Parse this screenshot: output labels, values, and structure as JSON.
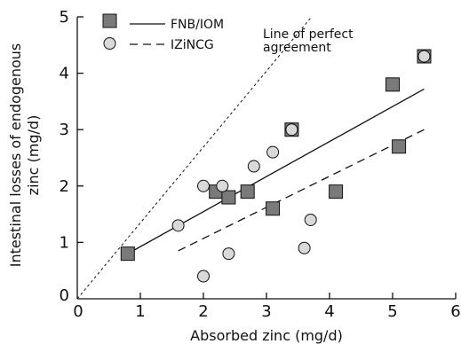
{
  "chart_data": {
    "type": "scatter",
    "xlabel": "Absorbed zinc (mg/d)",
    "ylabel_lines": [
      "Intestinal losses of endogenous",
      "zinc (mg/d)"
    ],
    "xlim": [
      0,
      6
    ],
    "ylim": [
      0,
      5
    ],
    "xticks": [
      0,
      1,
      2,
      3,
      4,
      5,
      6
    ],
    "yticks": [
      0,
      1,
      2,
      3,
      4,
      5
    ],
    "grid": false,
    "legend_position": "top-left",
    "legend": [
      {
        "label": "FNB/IOM",
        "marker": "square",
        "line": "solid"
      },
      {
        "label": "IZiNCG",
        "marker": "circle",
        "line": "dashed"
      }
    ],
    "annotation_lines": [
      "Line of perfect",
      "agreement"
    ],
    "reference_line": {
      "from": [
        0,
        0
      ],
      "to": [
        3.7,
        4.98
      ]
    },
    "series": [
      {
        "label_ref": "FNB/IOM",
        "points": [
          [
            0.8,
            0.8
          ],
          [
            2.2,
            1.9
          ],
          [
            2.4,
            1.8
          ],
          [
            2.7,
            1.9
          ],
          [
            3.1,
            1.6
          ],
          [
            3.4,
            3.0
          ],
          [
            4.1,
            1.9
          ],
          [
            5.0,
            3.8
          ],
          [
            5.1,
            2.7
          ],
          [
            5.5,
            4.3
          ]
        ],
        "fit": {
          "from": [
            0.8,
            0.8
          ],
          "to": [
            5.5,
            3.72
          ]
        }
      },
      {
        "label_ref": "IZiNCG",
        "points": [
          [
            1.6,
            1.3
          ],
          [
            2.0,
            2.0
          ],
          [
            2.3,
            2.0
          ],
          [
            2.8,
            2.35
          ],
          [
            3.1,
            2.6
          ],
          [
            2.0,
            0.4
          ],
          [
            2.4,
            0.8
          ],
          [
            3.6,
            0.9
          ],
          [
            3.7,
            1.4
          ],
          [
            3.4,
            3.0
          ],
          [
            5.5,
            4.3
          ]
        ],
        "fit": {
          "from": [
            1.6,
            0.85
          ],
          "to": [
            5.5,
            3.0
          ]
        }
      }
    ],
    "colors": {
      "square_fill": "#7a7a7a",
      "circle_fill": "#d9d9d9",
      "stroke": "#111111"
    }
  }
}
